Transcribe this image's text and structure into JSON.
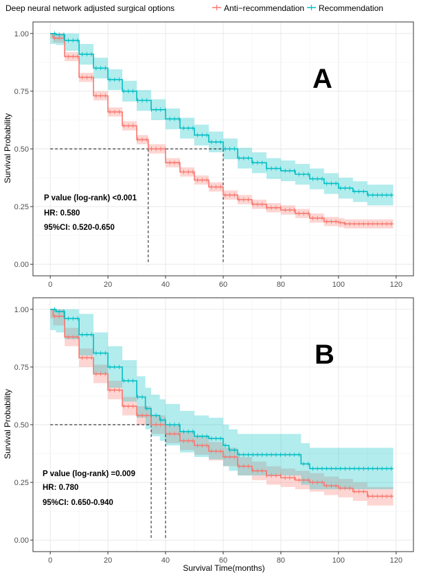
{
  "legend": {
    "title": "Deep neural network adjusted surgical options",
    "items": [
      {
        "label": "Anti−recommendation",
        "color": "#F8766D"
      },
      {
        "label": "Recommendation",
        "color": "#00BFC4"
      }
    ]
  },
  "chart_data": [
    {
      "type": "line",
      "panel": "A",
      "title": "",
      "xlabel": "",
      "ylabel": "Survival Probability",
      "xlim": [
        -6,
        126
      ],
      "ylim": [
        -0.05,
        1.05
      ],
      "x_ticks": [
        0,
        20,
        40,
        60,
        80,
        100,
        120
      ],
      "y_ticks": [
        "0.00",
        "0.25",
        "0.50",
        "0.75",
        "1.00"
      ],
      "grid": true,
      "annotations": [
        "P value (log-rank) <0.001",
        "HR: 0.580",
        "95%CI: 0.520-0.650"
      ],
      "median_lines": [
        34,
        60
      ],
      "series": [
        {
          "name": "Anti−recommendation",
          "color": "#F8766D",
          "x": [
            0,
            1,
            5,
            10,
            15,
            20,
            25,
            30,
            34,
            40,
            45,
            50,
            55,
            60,
            65,
            70,
            75,
            80,
            85,
            90,
            95,
            100,
            102,
            110,
            119
          ],
          "y": [
            1.0,
            0.98,
            0.9,
            0.81,
            0.73,
            0.66,
            0.6,
            0.54,
            0.5,
            0.44,
            0.4,
            0.365,
            0.335,
            0.3,
            0.28,
            0.26,
            0.245,
            0.235,
            0.22,
            0.2,
            0.185,
            0.18,
            0.175,
            0.175,
            0.175
          ],
          "band": 0.02
        },
        {
          "name": "Recommendation",
          "color": "#00BFC4",
          "x": [
            0,
            2,
            5,
            10,
            15,
            20,
            25,
            30,
            35,
            40,
            45,
            50,
            55,
            60,
            65,
            70,
            75,
            80,
            85,
            90,
            95,
            100,
            105,
            110,
            119
          ],
          "y": [
            1.0,
            0.995,
            0.97,
            0.91,
            0.85,
            0.8,
            0.75,
            0.71,
            0.67,
            0.63,
            0.59,
            0.56,
            0.53,
            0.5,
            0.46,
            0.44,
            0.415,
            0.405,
            0.39,
            0.37,
            0.35,
            0.33,
            0.315,
            0.3,
            0.3
          ],
          "band": 0.045
        }
      ]
    },
    {
      "type": "line",
      "panel": "B",
      "title": "",
      "xlabel": "Survival Time(months)",
      "ylabel": "Survival Probability",
      "xlim": [
        -6,
        126
      ],
      "ylim": [
        -0.05,
        1.05
      ],
      "x_ticks": [
        0,
        20,
        40,
        60,
        80,
        100,
        120
      ],
      "y_ticks": [
        "0.00",
        "0.25",
        "0.50",
        "0.75",
        "1.00"
      ],
      "grid": true,
      "annotations": [
        "P value (log-rank) =0.009",
        "HR: 0.780",
        "95%CI: 0.650-0.940"
      ],
      "median_lines": [
        35,
        40
      ],
      "series": [
        {
          "name": "Anti−recommendation",
          "color": "#F8766D",
          "x": [
            0,
            1,
            5,
            10,
            15,
            20,
            25,
            30,
            35,
            40,
            45,
            50,
            55,
            60,
            65,
            70,
            75,
            80,
            85,
            90,
            95,
            100,
            105,
            110,
            119
          ],
          "y": [
            1.0,
            0.97,
            0.88,
            0.79,
            0.72,
            0.65,
            0.58,
            0.54,
            0.5,
            0.46,
            0.43,
            0.41,
            0.385,
            0.36,
            0.32,
            0.3,
            0.28,
            0.27,
            0.26,
            0.25,
            0.235,
            0.225,
            0.21,
            0.19,
            0.19
          ],
          "band": 0.04
        },
        {
          "name": "Recommendation",
          "color": "#00BFC4",
          "x": [
            0,
            2,
            5,
            10,
            15,
            20,
            25,
            30,
            33,
            35,
            38,
            40,
            45,
            50,
            55,
            60,
            62,
            65,
            70,
            75,
            80,
            85,
            87,
            90,
            119
          ],
          "y": [
            1.0,
            0.99,
            0.96,
            0.89,
            0.81,
            0.75,
            0.69,
            0.62,
            0.57,
            0.54,
            0.52,
            0.5,
            0.47,
            0.45,
            0.44,
            0.41,
            0.39,
            0.37,
            0.37,
            0.37,
            0.37,
            0.37,
            0.33,
            0.31,
            0.31
          ],
          "band": 0.09
        }
      ]
    }
  ]
}
